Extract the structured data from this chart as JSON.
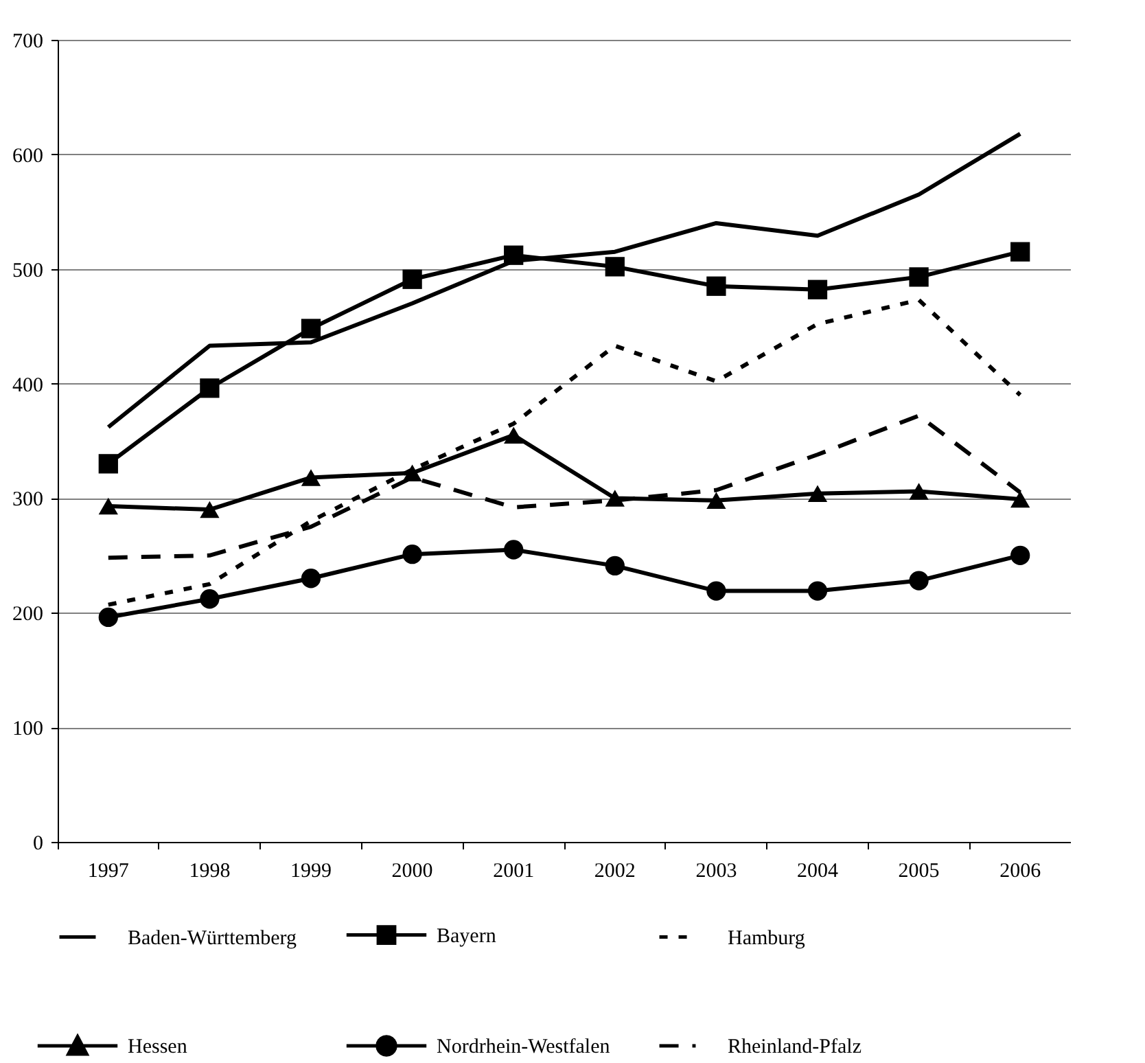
{
  "chart_data": {
    "type": "line",
    "categories": [
      "1997",
      "1998",
      "1999",
      "2000",
      "2001",
      "2002",
      "2003",
      "2004",
      "2005",
      "2006"
    ],
    "series": [
      {
        "name": "Baden-Württemberg",
        "color": "#000000",
        "marker": "none",
        "line_style": "solid",
        "values": [
          362,
          433,
          436,
          470,
          507,
          515,
          540,
          529,
          565,
          618
        ]
      },
      {
        "name": "Bayern",
        "color": "#000000",
        "marker": "square",
        "line_style": "solid",
        "values": [
          330,
          396,
          448,
          491,
          512,
          502,
          485,
          482,
          493,
          515
        ]
      },
      {
        "name": "Hamburg",
        "color": "#000000",
        "marker": "none",
        "line_style": "dotted",
        "values": [
          207,
          225,
          280,
          325,
          365,
          433,
          402,
          452,
          473,
          390
        ]
      },
      {
        "name": "Hessen",
        "color": "#000000",
        "marker": "triangle",
        "line_style": "solid",
        "values": [
          293,
          290,
          318,
          322,
          355,
          300,
          298,
          304,
          306,
          299
        ]
      },
      {
        "name": "Nordrhein-Westfalen",
        "color": "#000000",
        "marker": "circle",
        "line_style": "solid",
        "values": [
          196,
          212,
          230,
          251,
          255,
          241,
          219,
          219,
          228,
          250
        ]
      },
      {
        "name": "Rheinland-Pfalz",
        "color": "#000000",
        "marker": "none",
        "line_style": "dashed",
        "values": [
          248,
          250,
          275,
          318,
          292,
          298,
          307,
          338,
          372,
          305
        ]
      }
    ],
    "ylim": [
      0,
      700
    ],
    "yticks": [
      0,
      100,
      200,
      300,
      400,
      500,
      600,
      700
    ],
    "grid": "y",
    "legend": "bottom"
  }
}
